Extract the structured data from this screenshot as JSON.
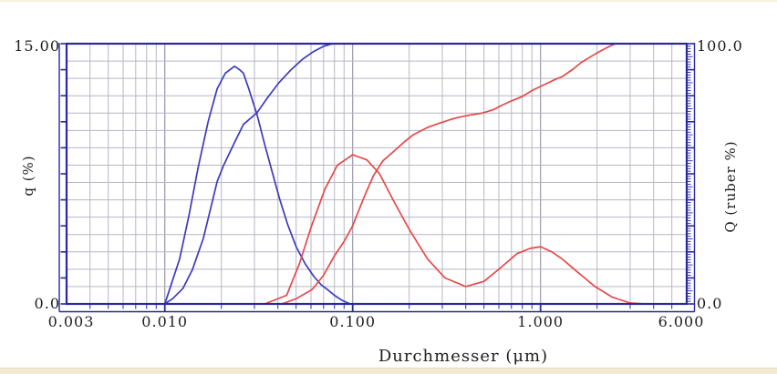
{
  "figure": {
    "xlabel": "Durchmesser (μm)",
    "ylabel_left": "q (%)",
    "ylabel_right": "Q (ruber %)",
    "y_left_max_label": "15.00",
    "y_left_min_label": "0.0",
    "y_right_max_label": "100.0",
    "y_right_min_label": "0.0",
    "x_tick_labels": [
      "0.003",
      "0.010",
      "0.100",
      "1.000",
      "6.000"
    ],
    "x_tick_values": [
      0.003,
      0.01,
      0.1,
      1.0,
      6.0
    ]
  },
  "colors": {
    "frame": "#2828a4",
    "grid_minor": "#b6b6c6",
    "grid_decade": "#9797ad",
    "blue_series": "#3b3bbd",
    "red_series": "#e64949",
    "text": "#1f1f1f",
    "strip_bottom": "#f4ead4",
    "strip_top": "#f8f1df"
  },
  "chart_data": {
    "type": "line",
    "title": "",
    "xlabel": "Durchmesser (μm)",
    "ylabel_left": "q (%)",
    "ylabel_right": "Q (ruber %)",
    "x_scale": "log",
    "x_range": [
      0.003,
      6.0
    ],
    "y_left_range": [
      0,
      15
    ],
    "y_right_range": [
      0,
      100
    ],
    "grid": true,
    "legend": "none",
    "horizontal_grid_divisions": 15,
    "left_axis_tick_divisions": 10,
    "series": [
      {
        "name": "blue-density-q",
        "color": "#3b3bbd",
        "axis": "left",
        "points": [
          [
            0.01,
            0
          ],
          [
            0.0105,
            0.7
          ],
          [
            0.012,
            2.6
          ],
          [
            0.0135,
            5.2
          ],
          [
            0.015,
            7.8
          ],
          [
            0.017,
            10.5
          ],
          [
            0.019,
            12.4
          ],
          [
            0.021,
            13.3
          ],
          [
            0.0235,
            13.7
          ],
          [
            0.025,
            13.5
          ],
          [
            0.0262,
            13.3
          ],
          [
            0.028,
            12.4
          ],
          [
            0.031,
            10.9
          ],
          [
            0.034,
            9.2
          ],
          [
            0.0375,
            7.5
          ],
          [
            0.041,
            6.0
          ],
          [
            0.045,
            4.6
          ],
          [
            0.05,
            3.3
          ],
          [
            0.056,
            2.3
          ],
          [
            0.062,
            1.6
          ],
          [
            0.068,
            1.1
          ],
          [
            0.073,
            0.85
          ],
          [
            0.08,
            0.5
          ],
          [
            0.088,
            0.2
          ],
          [
            0.097,
            0.0
          ]
        ]
      },
      {
        "name": "blue-cumulative-Q",
        "color": "#3b3bbd",
        "axis": "right",
        "points": [
          [
            0.01,
            0
          ],
          [
            0.011,
            2
          ],
          [
            0.0125,
            6
          ],
          [
            0.014,
            13
          ],
          [
            0.016,
            25
          ],
          [
            0.018,
            40
          ],
          [
            0.019,
            47
          ],
          [
            0.0205,
            53
          ],
          [
            0.0235,
            62
          ],
          [
            0.0262,
            69
          ],
          [
            0.031,
            73.5
          ],
          [
            0.035,
            79
          ],
          [
            0.0405,
            85
          ],
          [
            0.047,
            90
          ],
          [
            0.054,
            94
          ],
          [
            0.062,
            97
          ],
          [
            0.07,
            99
          ],
          [
            0.078,
            100
          ],
          [
            0.1,
            100
          ]
        ]
      },
      {
        "name": "red-density-q",
        "color": "#e64949",
        "axis": "left",
        "points": [
          [
            0.034,
            0
          ],
          [
            0.0445,
            0.5
          ],
          [
            0.052,
            2.3
          ],
          [
            0.06,
            4.4
          ],
          [
            0.071,
            6.6
          ],
          [
            0.083,
            8.0
          ],
          [
            0.1,
            8.6
          ],
          [
            0.119,
            8.3
          ],
          [
            0.139,
            7.5
          ],
          [
            0.166,
            5.9
          ],
          [
            0.2,
            4.3
          ],
          [
            0.25,
            2.6
          ],
          [
            0.31,
            1.5
          ],
          [
            0.4,
            1.0
          ],
          [
            0.5,
            1.3
          ],
          [
            0.6,
            2.0
          ],
          [
            0.75,
            2.9
          ],
          [
            0.88,
            3.2
          ],
          [
            1.0,
            3.3
          ],
          [
            1.15,
            3.0
          ],
          [
            1.3,
            2.6
          ],
          [
            1.55,
            1.9
          ],
          [
            1.95,
            1.0
          ],
          [
            2.4,
            0.4
          ],
          [
            3.0,
            0.05
          ],
          [
            3.6,
            0
          ]
        ]
      },
      {
        "name": "red-cumulative-Q",
        "color": "#e64949",
        "axis": "right",
        "points": [
          [
            0.042,
            0
          ],
          [
            0.05,
            2
          ],
          [
            0.061,
            5.6
          ],
          [
            0.07,
            11
          ],
          [
            0.08,
            18.5
          ],
          [
            0.09,
            24
          ],
          [
            0.1,
            30
          ],
          [
            0.115,
            41
          ],
          [
            0.129,
            49.3
          ],
          [
            0.145,
            55
          ],
          [
            0.166,
            58.7
          ],
          [
            0.19,
            62.5
          ],
          [
            0.21,
            65
          ],
          [
            0.25,
            67.8
          ],
          [
            0.283,
            69.2
          ],
          [
            0.33,
            70.8
          ],
          [
            0.366,
            71.7
          ],
          [
            0.43,
            72.7
          ],
          [
            0.494,
            73.4
          ],
          [
            0.56,
            74.6
          ],
          [
            0.617,
            76.2
          ],
          [
            0.7,
            78
          ],
          [
            0.8,
            79.7
          ],
          [
            0.9,
            82
          ],
          [
            1.05,
            84.3
          ],
          [
            1.2,
            86.3
          ],
          [
            1.31,
            87.4
          ],
          [
            1.5,
            90.4
          ],
          [
            1.64,
            92.7
          ],
          [
            1.85,
            95
          ],
          [
            2.05,
            96.9
          ],
          [
            2.33,
            99
          ],
          [
            2.51,
            100
          ],
          [
            3.0,
            100
          ]
        ]
      }
    ]
  }
}
